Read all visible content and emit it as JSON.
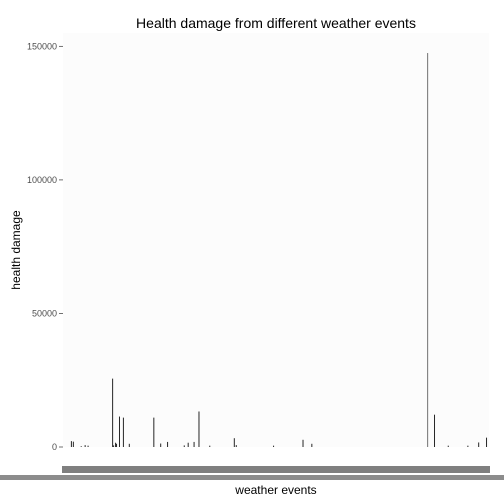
{
  "chart_data": {
    "type": "bar",
    "title": "Health damage from different weather events",
    "xlabel": "weather events",
    "ylabel": "health damage",
    "ylim": [
      0,
      155000
    ],
    "yticks": [
      0,
      50000,
      100000,
      150000
    ],
    "ytick_labels": [
      "0",
      "50000",
      "100000",
      "150000"
    ],
    "grid": false,
    "legend": "none",
    "colors": {
      "panel": "#fcfcfc",
      "bar": "#000000",
      "axis_text": "#4d4d4d",
      "tick_band": "#7f7f7f"
    },
    "values": [
      0,
      0,
      0,
      0,
      0,
      2200,
      0,
      2000,
      0,
      0,
      0,
      0,
      0,
      0,
      0,
      300,
      0,
      0,
      0,
      700,
      0,
      0,
      500,
      0,
      0,
      0,
      0,
      0,
      0,
      0,
      0,
      0,
      0,
      0,
      0,
      0,
      0,
      0,
      0,
      0,
      0,
      0,
      0,
      0,
      0,
      0,
      0,
      25600,
      600,
      0,
      1600,
      1200,
      0,
      0,
      11400,
      0,
      0,
      0,
      11000,
      0,
      0,
      0,
      0,
      0,
      1200,
      0,
      0,
      0,
      0,
      0,
      0,
      0,
      0,
      0,
      0,
      0,
      0,
      0,
      0,
      0,
      0,
      0,
      0,
      0,
      0,
      0,
      0,
      0,
      0,
      11000,
      0,
      0,
      0,
      0,
      0,
      0,
      1300,
      0,
      0,
      0,
      0,
      0,
      0,
      1900,
      0,
      0,
      0,
      0,
      0,
      0,
      0,
      0,
      0,
      0,
      0,
      0,
      0,
      0,
      0,
      0,
      600,
      0,
      0,
      0,
      1600,
      0,
      0,
      0,
      0,
      0,
      1900,
      0,
      0,
      0,
      0,
      13300,
      0,
      0,
      0,
      0,
      0,
      0,
      0,
      0,
      0,
      0,
      500,
      0,
      0,
      0,
      0,
      0,
      0,
      0,
      0,
      0,
      0,
      0,
      0,
      0,
      0,
      0,
      0,
      0,
      0,
      0,
      0,
      0,
      0,
      0,
      0,
      3300,
      0,
      700,
      0,
      0,
      0,
      0,
      0,
      0,
      0,
      0,
      0,
      0,
      0,
      0,
      0,
      0,
      0,
      0,
      0,
      0,
      0,
      0,
      0,
      0,
      0,
      0,
      0,
      0,
      0,
      0,
      0,
      0,
      0,
      0,
      0,
      0,
      0,
      0,
      0,
      500,
      0,
      0,
      0,
      0,
      0,
      0,
      0,
      0,
      0,
      0,
      0,
      0,
      0,
      0,
      0,
      0,
      0,
      0,
      0,
      0,
      0,
      0,
      0,
      0,
      0,
      0,
      0,
      0,
      0,
      2700,
      0,
      0,
      0,
      0,
      0,
      0,
      0,
      0,
      1200,
      0,
      0,
      0,
      0,
      0,
      0,
      0,
      0,
      0,
      0,
      0,
      0,
      0,
      0,
      0,
      0,
      0,
      0,
      0,
      0,
      0,
      0,
      0,
      0,
      0,
      0,
      0,
      0,
      0,
      0,
      0,
      0,
      0,
      0,
      0,
      0,
      0,
      0,
      0,
      0,
      0,
      0,
      0,
      0,
      0,
      0,
      0,
      0,
      0,
      0,
      0,
      0,
      0,
      0,
      0,
      0,
      0,
      0,
      0,
      0,
      0,
      0,
      0,
      0,
      0,
      0,
      0,
      0,
      0,
      0,
      0,
      0,
      0,
      0,
      0,
      0,
      0,
      0,
      0,
      0,
      0,
      0,
      0,
      0,
      0,
      0,
      0,
      0,
      0,
      0,
      0,
      0,
      0,
      0,
      0,
      0,
      0,
      0,
      0,
      0,
      0,
      0,
      0,
      0,
      0,
      0,
      0,
      0,
      0,
      0,
      0,
      0,
      0,
      0,
      0,
      0,
      0,
      147500,
      0,
      0,
      0,
      0,
      0,
      0,
      12100,
      0,
      0,
      0,
      0,
      0,
      0,
      0,
      0,
      0,
      0,
      0,
      0,
      0,
      500,
      0,
      0,
      0,
      0,
      0,
      0,
      0,
      0,
      0,
      0,
      0,
      0,
      0,
      0,
      0,
      0,
      0,
      0,
      0,
      500,
      0,
      0,
      0,
      0,
      0,
      0,
      0,
      0,
      0,
      0,
      1700,
      0,
      0,
      0,
      0,
      0,
      0,
      0,
      3500,
      0
    ]
  }
}
